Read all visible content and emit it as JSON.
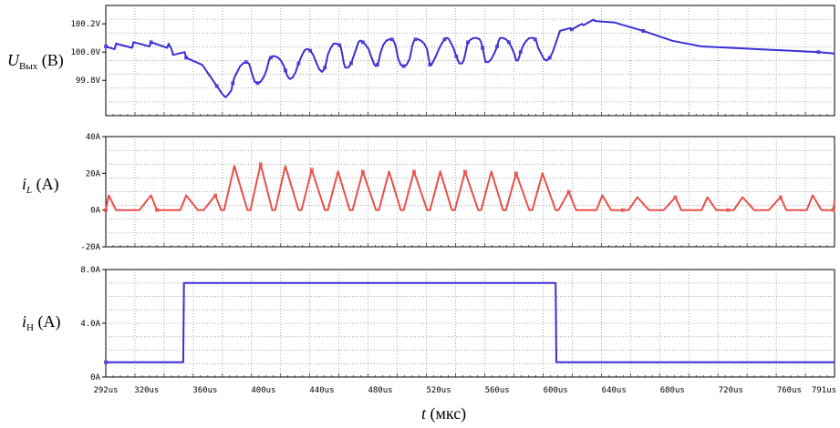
{
  "chart_data": [
    {
      "type": "line",
      "ylabel_sym": "U",
      "ylabel_sub": "Вых",
      "ylabel_unit": " (В)",
      "yticks": [
        "100.2V",
        "100.0V",
        "99.8V"
      ],
      "ytick_values": [
        100.2,
        100.0,
        99.8
      ],
      "ylim": [
        99.55,
        100.33
      ],
      "color": "#3b2fd6",
      "series": [
        {
          "x": [
            292,
            298,
            299,
            310,
            311,
            322,
            323,
            334,
            335,
            337,
            338,
            346,
            347,
            358,
            360,
            362,
            364,
            366,
            368,
            370,
            372,
            374,
            376,
            378,
            379,
            380,
            381,
            382,
            384,
            386,
            388,
            390,
            391,
            392,
            393,
            394,
            396,
            398,
            400,
            402,
            403,
            404,
            405,
            406,
            408,
            410,
            412,
            414,
            415,
            416,
            417,
            418,
            420,
            422,
            424,
            426,
            428,
            429,
            430,
            431,
            432,
            434,
            436,
            438,
            440,
            441,
            442,
            443,
            444,
            446,
            448,
            450,
            452,
            453,
            454,
            455,
            456,
            458,
            460,
            462,
            464,
            465,
            466,
            467,
            468,
            470,
            472,
            474,
            476,
            477,
            478,
            479,
            480,
            482,
            484,
            486,
            488,
            489,
            490,
            491,
            492,
            494,
            496,
            498,
            500,
            501,
            502,
            503,
            504,
            506,
            508,
            510,
            512,
            513,
            514,
            515,
            516,
            518,
            520,
            522,
            524,
            525,
            526,
            527,
            528,
            530,
            532,
            534,
            536,
            537,
            538,
            539,
            540,
            542,
            544,
            546,
            548,
            549,
            550,
            551,
            552,
            554,
            556,
            558,
            560,
            561,
            562,
            563,
            564,
            566,
            568,
            570,
            572,
            573,
            574,
            575,
            576,
            578,
            580,
            582,
            584,
            585,
            586,
            587,
            588,
            590,
            592,
            594,
            596,
            598,
            600,
            602,
            603,
            610,
            611,
            618,
            619,
            626,
            627,
            640,
            660,
            680,
            700,
            720,
            740,
            760,
            780,
            791
          ],
          "y": [
            100.04,
            100.02,
            100.06,
            100.03,
            100.07,
            100.04,
            100.07,
            100.03,
            100.06,
            100.02,
            99.98,
            100.0,
            99.96,
            99.91,
            99.88,
            99.85,
            99.82,
            99.79,
            99.76,
            99.73,
            99.7,
            99.68,
            99.7,
            99.73,
            99.78,
            99.82,
            99.84,
            99.86,
            99.9,
            99.92,
            99.93,
            99.92,
            99.89,
            99.85,
            99.82,
            99.79,
            99.78,
            99.79,
            99.82,
            99.87,
            99.91,
            99.95,
            99.96,
            99.97,
            99.97,
            99.96,
            99.94,
            99.9,
            99.87,
            99.84,
            99.82,
            99.81,
            99.82,
            99.86,
            99.92,
            99.97,
            100.01,
            100.02,
            100.02,
            100.02,
            100.01,
            99.98,
            99.93,
            99.88,
            99.86,
            99.87,
            99.89,
            99.93,
            99.98,
            100.03,
            100.06,
            100.06,
            100.05,
            100.03,
            99.98,
            99.92,
            99.89,
            99.89,
            99.92,
            99.98,
            100.04,
            100.07,
            100.08,
            100.08,
            100.07,
            100.05,
            100.02,
            99.96,
            99.91,
            99.9,
            99.91,
            99.94,
            99.99,
            100.05,
            100.08,
            100.09,
            100.09,
            100.08,
            100.06,
            100.02,
            99.96,
            99.91,
            99.9,
            99.91,
            99.95,
            100.0,
            100.05,
            100.08,
            100.09,
            100.09,
            100.08,
            100.06,
            100.02,
            99.96,
            99.91,
            99.91,
            99.93,
            99.97,
            100.02,
            100.06,
            100.09,
            100.1,
            100.1,
            100.09,
            100.07,
            100.03,
            99.97,
            99.92,
            99.92,
            99.94,
            99.98,
            100.03,
            100.07,
            100.09,
            100.1,
            100.1,
            100.09,
            100.07,
            100.03,
            99.98,
            99.93,
            99.93,
            99.95,
            99.99,
            100.04,
            100.08,
            100.1,
            100.1,
            100.1,
            100.09,
            100.07,
            100.03,
            99.98,
            99.94,
            99.94,
            99.96,
            100.0,
            100.05,
            100.08,
            100.1,
            100.1,
            100.1,
            100.09,
            100.07,
            100.03,
            99.99,
            99.95,
            99.94,
            99.96,
            100.0,
            100.06,
            100.12,
            100.15,
            100.17,
            100.16,
            100.2,
            100.19,
            100.23,
            100.22,
            100.21,
            100.15,
            100.08,
            100.04,
            100.03,
            100.02,
            100.01,
            100.0,
            99.99
          ]
        }
      ]
    },
    {
      "type": "line",
      "ylabel_sym": "i",
      "ylabel_sub": "L",
      "ylabel_unit": " (A)",
      "yticks": [
        "40A",
        "20A",
        "0A",
        "-20A"
      ],
      "ytick_values": [
        40,
        20,
        0,
        -20
      ],
      "ylim": [
        -20,
        40
      ],
      "color": "#e8504a",
      "series": [
        {
          "x": [
            292,
            294,
            299,
            307,
            315,
            323,
            327,
            335,
            343,
            347,
            355,
            359,
            367,
            371,
            373,
            380,
            389,
            391,
            398,
            406,
            408,
            415,
            424,
            426,
            433,
            442,
            444,
            451,
            459,
            461,
            468,
            477,
            479,
            486,
            494,
            496,
            503,
            512,
            514,
            521,
            529,
            531,
            538,
            547,
            549,
            556,
            564,
            566,
            573,
            582,
            584,
            591,
            600,
            602,
            609,
            614,
            620,
            628,
            632,
            638,
            646,
            650,
            656,
            664,
            668,
            674,
            682,
            686,
            692,
            700,
            704,
            710,
            718,
            722,
            728,
            736,
            740,
            746,
            754,
            758,
            764,
            772,
            776,
            782,
            790,
            791
          ],
          "y": [
            0,
            8,
            0,
            0,
            0,
            8,
            0,
            0,
            0,
            8,
            0,
            0,
            8,
            0,
            0,
            24,
            0,
            0,
            25,
            0,
            0,
            24,
            0,
            0,
            22,
            0,
            0,
            21,
            0,
            0,
            21,
            0,
            0,
            21,
            0,
            0,
            21,
            0,
            0,
            21,
            0,
            0,
            21,
            0,
            0,
            21,
            0,
            0,
            20,
            0,
            0,
            20,
            0,
            0,
            10,
            0,
            0,
            0,
            8,
            0,
            0,
            0,
            7,
            0,
            0,
            0,
            7,
            0,
            0,
            0,
            7,
            0,
            0,
            0,
            7,
            0,
            0,
            0,
            7,
            0,
            0,
            0,
            8,
            0,
            0,
            5
          ]
        }
      ]
    },
    {
      "type": "line",
      "ylabel_sym": "i",
      "ylabel_sub": "Н",
      "ylabel_unit": " (A)",
      "yticks": [
        "8.0A",
        "4.0A",
        "0A"
      ],
      "ytick_values": [
        8,
        4,
        0
      ],
      "ylim": [
        0,
        8
      ],
      "color": "#3b2fd6",
      "series": [
        {
          "x": [
            292,
            345,
            345.5,
            600,
            600.5,
            791
          ],
          "y": [
            1.1,
            1.1,
            7.0,
            7.0,
            1.1,
            1.1
          ]
        }
      ]
    }
  ],
  "x_axis": {
    "label_sym": "t",
    "label_unit": " (мкс)",
    "xlim": [
      292,
      791
    ],
    "tick_labels": [
      "292us",
      "320us",
      "360us",
      "400us",
      "440us",
      "480us",
      "520us",
      "560us",
      "600us",
      "640us",
      "680us",
      "720us",
      "760us",
      "791us"
    ],
    "tick_values": [
      292,
      320,
      360,
      400,
      440,
      480,
      520,
      560,
      600,
      640,
      680,
      720,
      760,
      791
    ]
  }
}
